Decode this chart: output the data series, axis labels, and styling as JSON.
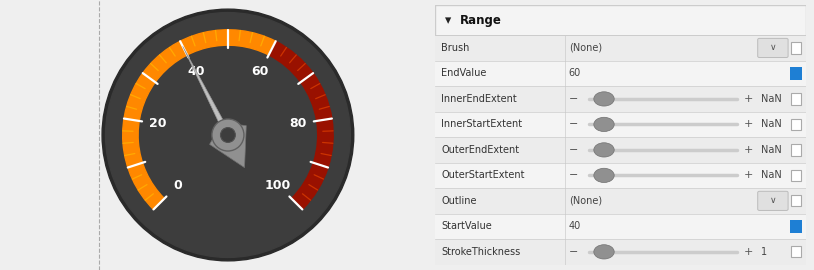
{
  "bg_color": "#efefef",
  "gauge_bg": "#3d3d3d",
  "gauge_border": "#2a2a2a",
  "orange_color": "#ff8800",
  "red_color": "#991100",
  "tick_color_orange": "#ffaa00",
  "tick_color_red": "#cc3300",
  "needle_color": "#aaaaaa",
  "needle_dark": "#777777",
  "hub_color": "#888888",
  "hub_dark": "#555555",
  "white": "#ffffff",
  "gauge_labels": [
    "0",
    "20",
    "40",
    "60",
    "80",
    "100"
  ],
  "gauge_values": [
    0,
    20,
    40,
    60,
    80,
    100
  ],
  "needle_value": 40,
  "panel_bg": "#f4f4f4",
  "panel_border": "#cccccc",
  "header_text": "Range",
  "rows": [
    {
      "label": "Brush",
      "value": "(None)",
      "type": "dropdown",
      "indicator": false,
      "indicator_color": null
    },
    {
      "label": "EndValue",
      "value": "60",
      "type": "text",
      "indicator": true,
      "indicator_color": "#1e7fd4"
    },
    {
      "label": "InnerEndExtent",
      "value": "NaN",
      "type": "slider",
      "indicator": false,
      "indicator_color": null
    },
    {
      "label": "InnerStartExtent",
      "value": "NaN",
      "type": "slider",
      "indicator": false,
      "indicator_color": null
    },
    {
      "label": "OuterEndExtent",
      "value": "NaN",
      "type": "slider",
      "indicator": false,
      "indicator_color": null
    },
    {
      "label": "OuterStartExtent",
      "value": "NaN",
      "type": "slider",
      "indicator": false,
      "indicator_color": null
    },
    {
      "label": "Outline",
      "value": "(None)",
      "type": "dropdown",
      "indicator": false,
      "indicator_color": null
    },
    {
      "label": "StartValue",
      "value": "40",
      "type": "text",
      "indicator": true,
      "indicator_color": "#1e7fd4"
    },
    {
      "label": "StrokeThickness",
      "value": "1",
      "type": "slider",
      "indicator": false,
      "indicator_color": null
    }
  ]
}
